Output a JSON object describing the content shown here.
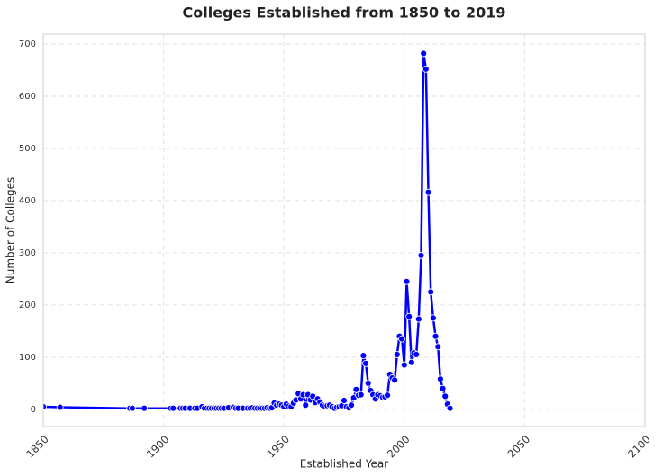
{
  "chart_data": {
    "type": "line",
    "title": "Colleges Established from 1850 to 2019",
    "x_label": "Established Year",
    "y_label": "Number of Colleges",
    "color": "#0000ff",
    "grid": true,
    "markers": true,
    "x": [
      1850,
      1857,
      1886,
      1887,
      1892,
      1903,
      1904,
      1907,
      1908,
      1909,
      1911,
      1913,
      1914,
      1916,
      1917,
      1918,
      1919,
      1920,
      1921,
      1922,
      1923,
      1924,
      1925,
      1927,
      1929,
      1930,
      1931,
      1933,
      1935,
      1936,
      1937,
      1938,
      1939,
      1940,
      1941,
      1942,
      1943,
      1944,
      1945,
      1946,
      1947,
      1948,
      1949,
      1950,
      1951,
      1952,
      1953,
      1954,
      1955,
      1956,
      1957,
      1958,
      1959,
      1960,
      1961,
      1962,
      1963,
      1964,
      1965,
      1966,
      1967,
      1968,
      1969,
      1970,
      1971,
      1972,
      1973,
      1974,
      1975,
      1976,
      1977,
      1978,
      1979,
      1980,
      1981,
      1982,
      1983,
      1984,
      1985,
      1986,
      1987,
      1988,
      1989,
      1990,
      1991,
      1992,
      1993,
      1994,
      1995,
      1996,
      1997,
      1998,
      1999,
      2000,
      2001,
      2002,
      2003,
      2004,
      2005,
      2006,
      2007,
      2008,
      2009,
      2010,
      2011,
      2012,
      2013,
      2014,
      2015,
      2016,
      2017,
      2018,
      2019
    ],
    "values": [
      5,
      4,
      2,
      2,
      2,
      2,
      2,
      2,
      2,
      2,
      2,
      2,
      2,
      5,
      2,
      2,
      2,
      2,
      2,
      2,
      2,
      2,
      2,
      3,
      4,
      2,
      2,
      2,
      2,
      2,
      3,
      2,
      2,
      2,
      2,
      2,
      3,
      2,
      3,
      12,
      8,
      10,
      8,
      5,
      10,
      6,
      5,
      12,
      18,
      30,
      20,
      28,
      8,
      28,
      18,
      25,
      13,
      20,
      14,
      8,
      6,
      7,
      8,
      5,
      2,
      4,
      5,
      7,
      17,
      5,
      3,
      8,
      22,
      38,
      27,
      28,
      103,
      88,
      50,
      36,
      28,
      20,
      28,
      26,
      23,
      24,
      27,
      67,
      60,
      56,
      105,
      140,
      135,
      85,
      245,
      178,
      90,
      108,
      105,
      173,
      295,
      682,
      652,
      416,
      225,
      175,
      140,
      120,
      58,
      40,
      25,
      10,
      2
    ],
    "xlim": [
      1850,
      2100
    ],
    "ylim": [
      -33,
      719
    ],
    "xticks": [
      1850,
      1900,
      1950,
      2000,
      2050,
      2100
    ],
    "yticks": [
      0,
      100,
      200,
      300,
      400,
      500,
      600,
      700
    ]
  }
}
